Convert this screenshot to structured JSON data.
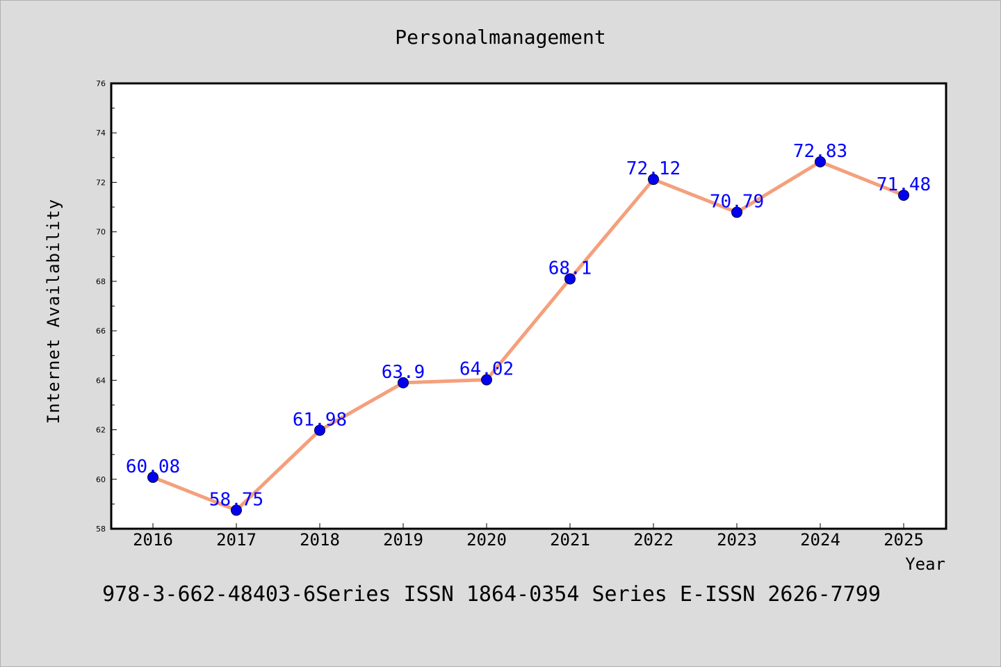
{
  "chart_data": {
    "type": "line",
    "title": "Personalmanagement",
    "xlabel": "Year",
    "ylabel": "Internet Availability",
    "footer": "978-3-662-48403-6Series ISSN 1864-0354 Series E-ISSN 2626-7799",
    "categories": [
      "2016",
      "2017",
      "2018",
      "2019",
      "2020",
      "2021",
      "2022",
      "2023",
      "2024",
      "2025"
    ],
    "series": [
      {
        "values": [
          60.08,
          58.75,
          61.98,
          63.9,
          64.02,
          68.1,
          72.12,
          70.79,
          72.83,
          71.48
        ],
        "labels": [
          "60.08",
          "58.75",
          "61.98",
          "63.9",
          "64.02",
          "68.1",
          "72.12",
          "70.79",
          "72.83",
          "71.48"
        ],
        "line_color": "#f4a07c",
        "marker_color": "#0000ee",
        "label_color": "#0000ff"
      }
    ],
    "ylim": [
      58,
      76
    ],
    "yticks": [
      "58",
      "60",
      "62",
      "64",
      "66",
      "68",
      "70",
      "72",
      "74",
      "76"
    ],
    "grid": false,
    "legend": "none",
    "background": "#dcdcdc",
    "plot_background": "#ffffff"
  }
}
